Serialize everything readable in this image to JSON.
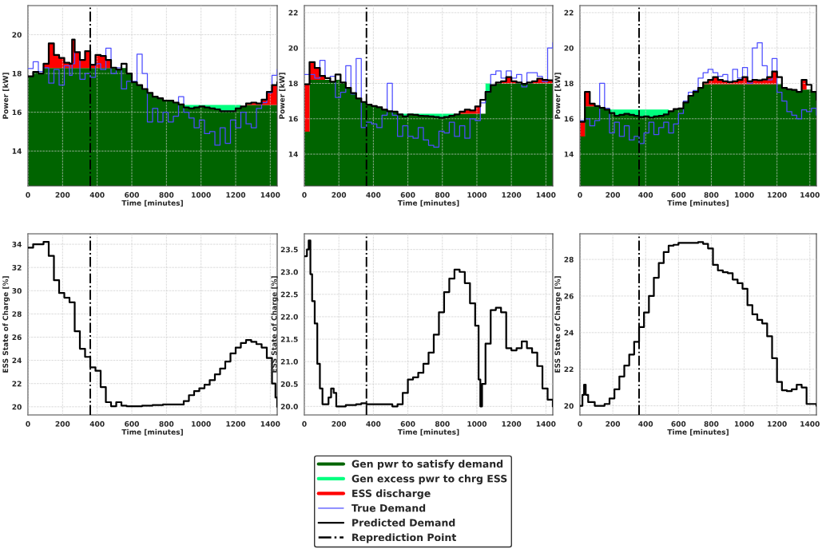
{
  "chart_data": [
    {
      "type": "area",
      "xlabel": "Time [minutes]",
      "ylabel": "Power [kW]",
      "xlim": [
        0,
        1440
      ],
      "ylim": [
        12.2,
        21.5
      ],
      "xticks": [
        0,
        200,
        400,
        600,
        800,
        1000,
        1200,
        1400
      ],
      "yticks": [
        14,
        16,
        18,
        20
      ],
      "grid": true,
      "legend": "bottom",
      "x": [
        0,
        30,
        60,
        90,
        120,
        150,
        180,
        210,
        240,
        255,
        270,
        300,
        330,
        360,
        390,
        420,
        450,
        480,
        510,
        540,
        570,
        600,
        630,
        660,
        690,
        720,
        750,
        780,
        810,
        840,
        870,
        900,
        930,
        960,
        990,
        1020,
        1050,
        1080,
        1110,
        1140,
        1170,
        1200,
        1230,
        1260,
        1290,
        1320,
        1350,
        1380,
        1410,
        1440
      ],
      "series": [
        {
          "name": "Gen pwr to satisfy demand",
          "color": "#006400",
          "values": [
            17.85,
            18.08,
            18.0,
            18.28,
            18.28,
            18.28,
            18.28,
            18.28,
            18.28,
            18.28,
            18.28,
            18.28,
            18.28,
            18.28,
            18.28,
            18.28,
            18.28,
            18.28,
            18.2,
            18.28,
            18.0,
            17.55,
            17.4,
            17.2,
            17.0,
            16.8,
            16.72,
            16.6,
            16.6,
            16.5,
            16.4,
            16.25,
            16.2,
            16.25,
            16.3,
            16.25,
            16.2,
            16.15,
            16.05,
            16.05,
            16.05,
            16.2,
            16.3,
            16.38,
            16.38,
            16.38,
            16.38,
            16.38,
            16.38,
            16.38
          ]
        },
        {
          "name": "Gen excess pwr to chrg ESS",
          "color": "#00ff7f",
          "values": [
            null,
            null,
            null,
            null,
            null,
            null,
            null,
            null,
            null,
            null,
            null,
            null,
            null,
            null,
            null,
            null,
            null,
            null,
            null,
            null,
            null,
            null,
            null,
            null,
            null,
            null,
            null,
            null,
            null,
            null,
            null,
            16.38,
            16.38,
            16.38,
            16.38,
            16.38,
            16.38,
            16.38,
            16.38,
            16.38,
            16.38,
            16.38,
            16.38,
            null,
            null,
            null,
            null,
            null,
            null,
            null
          ]
        },
        {
          "name": "ESS discharge",
          "color": "#ff0000",
          "values": [
            null,
            null,
            null,
            18.5,
            19.55,
            18.95,
            18.8,
            18.55,
            18.5,
            19.75,
            19.1,
            18.7,
            19.15,
            18.45,
            18.95,
            18.9,
            18.7,
            18.3,
            null,
            null,
            null,
            null,
            null,
            null,
            null,
            null,
            null,
            null,
            null,
            null,
            null,
            null,
            null,
            null,
            null,
            null,
            null,
            null,
            null,
            null,
            null,
            null,
            null,
            16.45,
            16.5,
            16.45,
            16.65,
            17.05,
            17.4,
            17.55
          ]
        },
        {
          "name": "True Demand",
          "type": "step",
          "color": "#4d4dff",
          "values": [
            18.25,
            18.6,
            18.1,
            18.3,
            17.5,
            18.2,
            17.4,
            18.4,
            17.9,
            18.5,
            19.1,
            17.7,
            18.0,
            17.8,
            18.5,
            18.2,
            19.3,
            18.0,
            18.3,
            17.2,
            17.6,
            17.6,
            19.0,
            18.0,
            15.5,
            16.2,
            15.5,
            16.0,
            15.5,
            15.8,
            16.8,
            16.0,
            15.7,
            15.2,
            15.6,
            14.9,
            15.0,
            14.3,
            15.2,
            14.4,
            15.6,
            15.2,
            16.0,
            15.4,
            15.2,
            16.2,
            16.5,
            17.0,
            17.9,
            18.2
          ]
        },
        {
          "name": "Predicted Demand",
          "type": "step",
          "color": "#000000",
          "values": [
            17.85,
            18.08,
            18.0,
            18.5,
            19.55,
            18.95,
            18.8,
            18.55,
            18.5,
            19.75,
            19.1,
            18.7,
            19.15,
            18.45,
            18.95,
            18.9,
            18.7,
            18.3,
            18.2,
            18.5,
            18.0,
            17.55,
            17.4,
            17.2,
            17.0,
            16.8,
            16.72,
            16.6,
            16.6,
            16.5,
            16.4,
            16.25,
            16.2,
            16.25,
            16.3,
            16.25,
            16.2,
            16.15,
            16.05,
            16.05,
            16.05,
            16.2,
            16.3,
            16.45,
            16.5,
            16.45,
            16.65,
            17.05,
            17.4,
            17.55
          ]
        }
      ],
      "ref_lines": [
        {
          "axis": "x",
          "value": 360,
          "label": "Reprediction Point",
          "color": "#000000",
          "line_style": "dashdot"
        }
      ]
    },
    {
      "type": "area",
      "xlabel": "Time [minutes]",
      "ylabel": "Power [kW]",
      "xlim": [
        0,
        1440
      ],
      "ylim": [
        12.2,
        22.4
      ],
      "xticks": [
        0,
        200,
        400,
        600,
        800,
        1000,
        1200,
        1400
      ],
      "yticks": [
        14,
        16,
        18,
        20,
        22
      ],
      "grid": true,
      "x": [
        0,
        30,
        60,
        90,
        120,
        150,
        180,
        210,
        240,
        270,
        300,
        330,
        360,
        390,
        420,
        450,
        480,
        510,
        540,
        570,
        600,
        630,
        660,
        690,
        720,
        750,
        780,
        810,
        840,
        870,
        900,
        930,
        960,
        990,
        1020,
        1050,
        1080,
        1110,
        1140,
        1170,
        1200,
        1230,
        1260,
        1290,
        1320,
        1350,
        1380,
        1410,
        1440
      ],
      "series": [
        {
          "name": "Gen pwr to satisfy demand",
          "color": "#006400",
          "values": [
            15.27,
            18.2,
            18.2,
            18.2,
            18.2,
            18.1,
            18.2,
            18.05,
            17.75,
            17.45,
            17.15,
            16.95,
            16.8,
            16.72,
            16.65,
            16.52,
            16.43,
            16.4,
            16.25,
            16.13,
            16.25,
            16.22,
            16.17,
            16.15,
            16.13,
            16.1,
            16.05,
            16.1,
            16.17,
            16.25,
            16.28,
            16.28,
            16.28,
            16.28,
            16.28,
            17.52,
            17.9,
            18.0,
            18.0,
            18.0,
            18.0,
            18.0,
            17.97,
            18.0,
            18.0,
            18.0,
            18.0,
            18.0,
            18.0
          ]
        },
        {
          "name": "Gen excess pwr to chrg ESS",
          "color": "#00ff7f",
          "values": [
            null,
            null,
            null,
            null,
            null,
            null,
            null,
            null,
            null,
            null,
            null,
            null,
            null,
            null,
            null,
            null,
            null,
            null,
            16.28,
            16.28,
            16.28,
            16.28,
            16.28,
            16.28,
            16.28,
            16.28,
            16.28,
            16.28,
            16.28,
            16.28,
            null,
            null,
            null,
            null,
            null,
            18.0,
            18.0,
            null,
            null,
            null,
            null,
            null,
            null,
            null,
            null,
            null,
            null,
            null,
            null
          ]
        },
        {
          "name": "ESS discharge",
          "color": "#ff0000",
          "values": [
            17.95,
            19.2,
            18.87,
            18.42,
            18.3,
            null,
            null,
            null,
            null,
            null,
            null,
            null,
            null,
            null,
            null,
            null,
            null,
            null,
            null,
            null,
            null,
            null,
            null,
            null,
            null,
            null,
            null,
            null,
            null,
            null,
            16.4,
            16.52,
            16.47,
            16.7,
            17.07,
            null,
            null,
            18.05,
            18.12,
            18.35,
            18.12,
            18.05,
            null,
            18.05,
            18.12,
            18.27,
            18.2,
            18.17,
            18.12
          ]
        },
        {
          "name": "True Demand",
          "type": "step",
          "color": "#4d4dff",
          "values": [
            18.5,
            18.5,
            18.3,
            19.3,
            18.3,
            18.4,
            17.2,
            17.5,
            19.0,
            17.4,
            19.4,
            15.5,
            15.8,
            15.7,
            15.5,
            16.2,
            18.0,
            16.2,
            15.0,
            15.6,
            15.0,
            14.9,
            15.5,
            14.8,
            14.5,
            14.4,
            15.3,
            15.2,
            15.8,
            15.0,
            15.6,
            14.9,
            16.0,
            15.9,
            16.9,
            17.5,
            18.5,
            18.7,
            18.3,
            18.7,
            18.3,
            18.5,
            17.8,
            18.6,
            18.6,
            18.4,
            18.1,
            20.0,
            20.3
          ]
        },
        {
          "name": "Predicted Demand",
          "type": "step",
          "color": "#000000",
          "values": [
            17.95,
            19.2,
            18.87,
            18.42,
            18.3,
            18.1,
            18.5,
            18.05,
            17.75,
            17.45,
            17.15,
            16.95,
            16.8,
            16.72,
            16.65,
            16.52,
            16.43,
            16.4,
            16.25,
            16.13,
            16.25,
            16.22,
            16.17,
            16.15,
            16.13,
            16.1,
            16.05,
            16.1,
            16.17,
            16.25,
            16.4,
            16.52,
            16.47,
            16.7,
            17.07,
            17.52,
            17.9,
            18.05,
            18.12,
            18.35,
            18.12,
            18.05,
            17.97,
            18.05,
            18.12,
            18.27,
            18.2,
            18.17,
            18.12
          ]
        }
      ],
      "ref_lines": [
        {
          "axis": "x",
          "value": 360,
          "color": "#000000",
          "line_style": "dashdot"
        }
      ]
    },
    {
      "type": "area",
      "xlabel": "Time [minutes]",
      "ylabel": "Power [kW]",
      "xlim": [
        0,
        1440
      ],
      "ylim": [
        12.2,
        22.4
      ],
      "xticks": [
        0,
        200,
        400,
        600,
        800,
        1000,
        1200,
        1400
      ],
      "yticks": [
        14,
        16,
        18,
        20,
        22
      ],
      "grid": true,
      "x": [
        0,
        30,
        60,
        90,
        120,
        150,
        180,
        210,
        240,
        270,
        300,
        330,
        360,
        390,
        420,
        450,
        480,
        510,
        540,
        570,
        600,
        630,
        660,
        690,
        720,
        750,
        780,
        810,
        840,
        870,
        900,
        930,
        960,
        990,
        1020,
        1050,
        1080,
        1110,
        1140,
        1170,
        1200,
        1230,
        1260,
        1290,
        1320,
        1350,
        1380,
        1410,
        1440
      ],
      "series": [
        {
          "name": "Gen pwr to satisfy demand",
          "color": "#006400",
          "values": [
            15.0,
            16.7,
            16.7,
            16.7,
            16.62,
            16.52,
            16.32,
            16.17,
            16.22,
            16.28,
            16.22,
            16.17,
            16.1,
            16.13,
            16.07,
            16.13,
            16.17,
            16.25,
            16.43,
            16.55,
            16.58,
            16.92,
            17.3,
            17.52,
            17.75,
            17.95,
            17.95,
            17.95,
            17.95,
            17.95,
            17.95,
            17.95,
            17.95,
            17.95,
            17.95,
            17.95,
            17.95,
            17.95,
            17.95,
            17.95,
            17.95,
            17.75,
            17.67,
            17.63,
            17.52,
            17.65,
            17.65,
            17.52,
            17.07
          ]
        },
        {
          "name": "Gen excess pwr to chrg ESS",
          "color": "#00ff7f",
          "values": [
            null,
            null,
            null,
            null,
            null,
            null,
            16.52,
            16.52,
            16.52,
            16.52,
            16.52,
            16.52,
            16.52,
            16.52,
            16.52,
            16.52,
            16.52,
            16.52,
            16.52,
            null,
            null,
            null,
            null,
            null,
            null,
            null,
            null,
            null,
            null,
            null,
            null,
            null,
            null,
            null,
            null,
            null,
            null,
            null,
            null,
            null,
            null,
            null,
            null,
            null,
            null,
            null,
            null,
            null,
            null
          ]
        },
        {
          "name": "ESS discharge",
          "color": "#ff0000",
          "values": [
            15.83,
            17.52,
            16.85,
            16.72,
            null,
            null,
            null,
            null,
            null,
            null,
            null,
            null,
            null,
            null,
            null,
            null,
            null,
            null,
            null,
            null,
            null,
            null,
            null,
            null,
            null,
            18.05,
            18.2,
            18.35,
            18.2,
            18.12,
            18.07,
            18.12,
            18.2,
            18.35,
            18.12,
            18.2,
            18.17,
            18.22,
            18.35,
            18.67,
            18.35,
            null,
            null,
            null,
            null,
            18.2,
            17.92,
            null,
            null
          ]
        },
        {
          "name": "True Demand",
          "type": "step",
          "color": "#4d4dff",
          "values": [
            15.9,
            16.0,
            15.6,
            15.9,
            18.0,
            16.6,
            15.2,
            15.8,
            15.0,
            15.6,
            14.8,
            15.0,
            14.6,
            15.2,
            15.8,
            15.1,
            15.5,
            15.8,
            15.2,
            15.7,
            16.3,
            17.0,
            17.5,
            17.6,
            18.3,
            18.6,
            18.8,
            18.6,
            18.4,
            18.5,
            18.1,
            18.8,
            18.3,
            18.9,
            18.0,
            20.0,
            20.3,
            19.0,
            18.2,
            19.4,
            17.5,
            17.0,
            16.4,
            16.2,
            16.0,
            16.5,
            16.4,
            16.6,
            16.2
          ]
        },
        {
          "name": "Predicted Demand",
          "type": "step",
          "color": "#000000",
          "values": [
            15.83,
            17.52,
            16.85,
            16.72,
            16.62,
            16.52,
            16.32,
            16.17,
            16.22,
            16.28,
            16.22,
            16.17,
            16.1,
            16.13,
            16.07,
            16.13,
            16.17,
            16.25,
            16.43,
            16.55,
            16.58,
            16.92,
            17.3,
            17.52,
            17.75,
            18.05,
            18.2,
            18.35,
            18.2,
            18.12,
            18.07,
            18.12,
            18.2,
            18.35,
            18.12,
            18.2,
            18.17,
            18.22,
            18.35,
            18.67,
            18.35,
            17.75,
            17.67,
            17.63,
            17.52,
            18.2,
            17.92,
            17.52,
            17.07
          ]
        }
      ],
      "ref_lines": [
        {
          "axis": "x",
          "value": 360,
          "color": "#000000",
          "line_style": "dashdot"
        }
      ]
    },
    {
      "type": "step",
      "xlabel": "Time [minutes]",
      "ylabel": "ESS State of Charge [%]",
      "xlim": [
        0,
        1440
      ],
      "ylim": [
        19.3,
        34.9
      ],
      "xticks": [
        0,
        200,
        400,
        600,
        800,
        1000,
        1200,
        1400
      ],
      "yticks": [
        20,
        22,
        24,
        26,
        28,
        30,
        32,
        34
      ],
      "grid": true,
      "x": [
        0,
        30,
        60,
        90,
        120,
        150,
        180,
        210,
        240,
        270,
        300,
        330,
        360,
        390,
        420,
        450,
        480,
        510,
        540,
        570,
        600,
        660,
        720,
        780,
        840,
        870,
        900,
        930,
        960,
        990,
        1020,
        1050,
        1080,
        1110,
        1140,
        1170,
        1200,
        1230,
        1260,
        1290,
        1320,
        1350,
        1380,
        1410,
        1430,
        1440
      ],
      "series": [
        {
          "color": "#000000",
          "values": [
            33.7,
            34.0,
            34.0,
            34.2,
            33.0,
            30.9,
            29.8,
            29.4,
            29.0,
            26.5,
            25.0,
            24.3,
            23.4,
            23.1,
            21.7,
            20.4,
            20.05,
            20.4,
            20.1,
            20.05,
            20.05,
            20.1,
            20.15,
            20.2,
            20.2,
            20.2,
            20.5,
            21.0,
            21.35,
            21.6,
            21.9,
            22.3,
            22.8,
            23.3,
            23.9,
            24.6,
            25.1,
            25.5,
            25.75,
            25.6,
            25.4,
            25.1,
            24.2,
            22.0,
            20.8,
            20.0
          ]
        }
      ],
      "ref_lines": [
        {
          "axis": "x",
          "value": 360,
          "color": "#000000",
          "line_style": "dashdot"
        }
      ]
    },
    {
      "type": "step",
      "xlabel": "Time [minutes]",
      "ylabel": "ESS State of Charge [%]",
      "xlim": [
        0,
        1440
      ],
      "ylim": [
        19.81,
        23.85
      ],
      "xticks": [
        0,
        200,
        400,
        600,
        800,
        1000,
        1200,
        1400
      ],
      "yticks": [
        {
          "value": 20,
          "label": "20.0"
        },
        20.5,
        {
          "value": 21,
          "label": "21.0"
        },
        21.5,
        {
          "value": 22,
          "label": "22.0"
        },
        22.5,
        {
          "value": 23,
          "label": "23.0"
        },
        23.5
      ],
      "grid": true,
      "x": [
        0,
        15,
        25,
        35,
        45,
        60,
        75,
        90,
        105,
        120,
        140,
        155,
        170,
        185,
        240,
        300,
        330,
        360,
        420,
        480,
        510,
        540,
        570,
        600,
        630,
        660,
        690,
        720,
        750,
        780,
        810,
        840,
        870,
        900,
        930,
        960,
        990,
        1010,
        1020,
        1030,
        1050,
        1080,
        1110,
        1140,
        1170,
        1200,
        1230,
        1260,
        1290,
        1320,
        1350,
        1380,
        1410,
        1440
      ],
      "series": [
        {
          "color": "#000000",
          "values": [
            23.35,
            23.5,
            23.7,
            22.95,
            22.35,
            21.85,
            20.95,
            20.4,
            20.05,
            20.05,
            20.2,
            20.4,
            20.3,
            20.0,
            20.03,
            20.05,
            20.07,
            20.05,
            20.05,
            20.05,
            20.0,
            20.05,
            20.3,
            20.6,
            20.65,
            20.75,
            20.95,
            21.2,
            21.6,
            22.1,
            22.55,
            22.85,
            23.05,
            23.0,
            22.75,
            22.3,
            21.8,
            20.6,
            20.0,
            20.5,
            21.4,
            22.15,
            22.2,
            22.1,
            21.3,
            21.25,
            21.3,
            21.45,
            21.3,
            21.2,
            20.9,
            20.4,
            20.15,
            20.0
          ]
        }
      ],
      "ref_lines": [
        {
          "axis": "x",
          "value": 360,
          "color": "#000000",
          "line_style": "dashdot"
        }
      ]
    },
    {
      "type": "step",
      "xlabel": "Time [minutes]",
      "ylabel": "ESS State of Charge [%]",
      "xlim": [
        0,
        1440
      ],
      "ylim": [
        19.5,
        29.4
      ],
      "xticks": [
        0,
        200,
        400,
        600,
        800,
        1000,
        1200,
        1400
      ],
      "yticks": [
        20,
        22,
        24,
        26,
        28
      ],
      "grid": true,
      "x": [
        0,
        15,
        25,
        35,
        50,
        90,
        150,
        180,
        210,
        240,
        270,
        300,
        330,
        360,
        390,
        420,
        450,
        480,
        510,
        540,
        570,
        600,
        660,
        720,
        750,
        780,
        810,
        840,
        870,
        900,
        930,
        960,
        990,
        1020,
        1050,
        1080,
        1110,
        1140,
        1170,
        1200,
        1230,
        1260,
        1290,
        1320,
        1350,
        1380,
        1440
      ],
      "series": [
        {
          "color": "#000000",
          "values": [
            20.0,
            20.6,
            21.15,
            20.6,
            20.2,
            20.0,
            20.1,
            20.4,
            20.9,
            21.6,
            22.2,
            22.8,
            23.5,
            24.3,
            25.1,
            26.0,
            27.0,
            27.8,
            28.4,
            28.75,
            28.8,
            28.9,
            28.9,
            28.95,
            28.85,
            28.6,
            27.7,
            27.4,
            27.3,
            27.25,
            26.9,
            26.7,
            26.4,
            25.5,
            25.0,
            24.7,
            24.5,
            23.8,
            22.6,
            21.3,
            20.85,
            20.8,
            20.9,
            21.15,
            21.0,
            20.1,
            20.0
          ]
        }
      ],
      "ref_lines": [
        {
          "axis": "x",
          "value": 360,
          "color": "#000000",
          "line_style": "dashdot"
        }
      ]
    }
  ]
}
